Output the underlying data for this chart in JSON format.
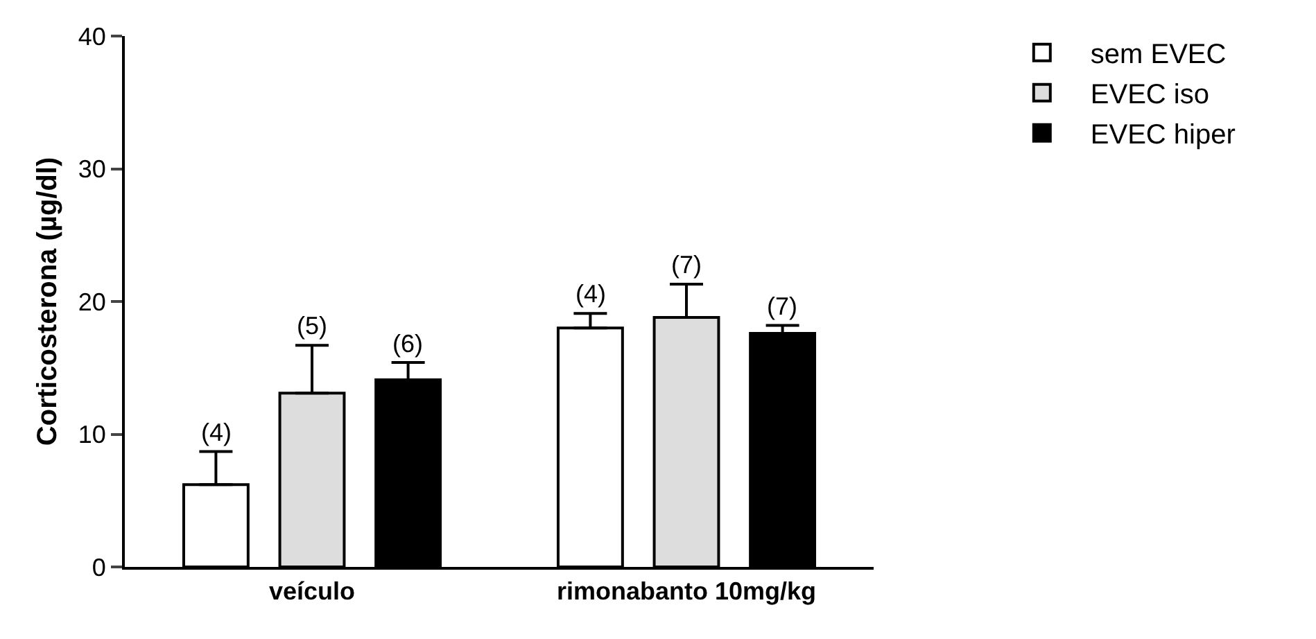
{
  "chart_data": {
    "type": "bar",
    "ylabel": "Corticosterona (µg/dl)",
    "categories": [
      "veículo",
      "rimonabanto 10mg/kg"
    ],
    "series": [
      {
        "name": "sem EVEC",
        "color": "#ffffff",
        "values": [
          6.2,
          18.0
        ],
        "errors": [
          [
            6.2,
            8.7
          ],
          [
            18.0,
            19.1
          ]
        ]
      },
      {
        "name": "EVEC iso",
        "color": "#dddddd",
        "values": [
          13.1,
          18.8
        ],
        "errors": [
          [
            13.1,
            16.7
          ],
          [
            18.8,
            21.3
          ]
        ]
      },
      {
        "name": "EVEC hiper",
        "color": "#000000",
        "values": [
          14.1,
          17.6
        ],
        "errors": [
          [
            14.1,
            15.4
          ],
          [
            17.6,
            18.2
          ]
        ]
      }
    ],
    "annotations": [
      "(4)",
      "(5)",
      "(6)",
      "(4)",
      "(7)",
      "(7)"
    ],
    "ylim": [
      0,
      40
    ],
    "yticks": [
      0,
      10,
      20,
      30,
      40
    ],
    "grid": false,
    "legend": "top right"
  }
}
